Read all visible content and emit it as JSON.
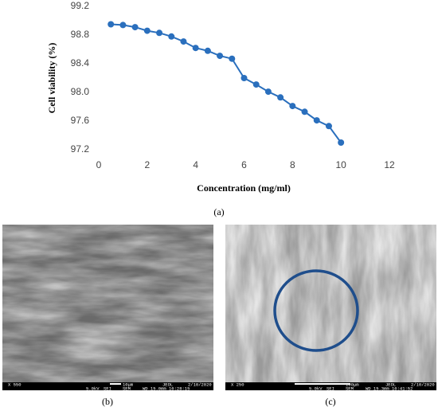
{
  "chart_data": {
    "type": "line",
    "xlabel": "Concentration (mg/ml)",
    "ylabel": "Cell viability (%)",
    "x": [
      0.5,
      1,
      1.5,
      2,
      2.5,
      3,
      3.5,
      4,
      4.5,
      5,
      5.5,
      6,
      6.5,
      7,
      7.5,
      8,
      8.5,
      9,
      9.5,
      10
    ],
    "series": [
      {
        "color": "#2a6fbd",
        "values": [
          98.95,
          98.94,
          98.91,
          98.86,
          98.83,
          98.78,
          98.71,
          98.62,
          98.58,
          98.51,
          98.47,
          98.2,
          98.11,
          98.01,
          97.93,
          97.81,
          97.73,
          97.61,
          97.53,
          97.3
        ]
      }
    ],
    "xlim": [
      0,
      12
    ],
    "xticks": [
      0,
      2,
      4,
      6,
      8,
      10,
      12
    ],
    "ylim": [
      97.2,
      99.2
    ],
    "yticks": [
      97.2,
      97.6,
      {
        "value": 98,
        "label": "98.0"
      },
      98.4,
      98.8,
      99.2
    ],
    "grid": false
  },
  "captions": [
    "(a)",
    "(b)",
    "(c)"
  ],
  "images": [
    {
      "info": [
        "X 550",
        "10μm",
        "JEOL",
        "2/10/2020",
        "5.0kV",
        "SEI",
        "SEM",
        "WD 15.0mm 16:28:15"
      ]
    },
    {
      "info": [
        "X 250",
        "100μm",
        "JEOL",
        "2/10/2020",
        "5.0kV",
        "SEI",
        "SEM",
        "WD 15.3mm 16:41:52"
      ]
    }
  ]
}
